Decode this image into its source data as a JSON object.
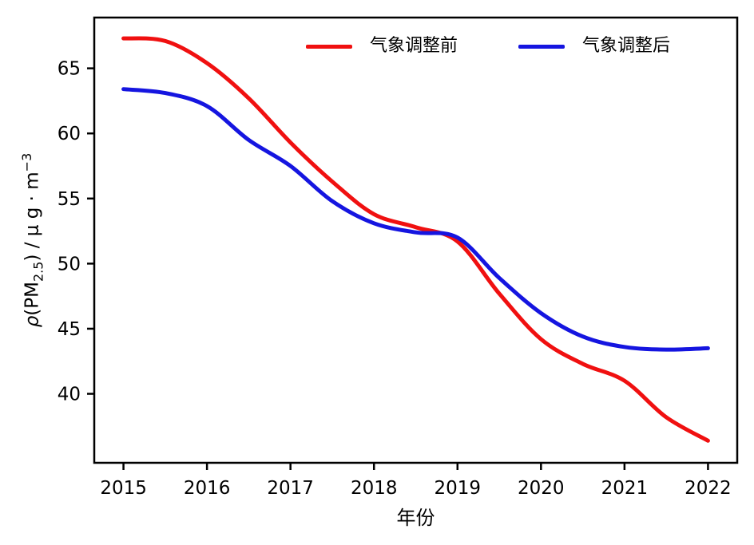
{
  "chart_data": {
    "type": "line",
    "title": "",
    "xlabel": "年份",
    "ylabel_plain": "ρ(PM2.5) / μ g · m−3",
    "ylabel_parts": {
      "rho": "ρ",
      "prefix": "(PM",
      "sub": "2.5",
      "mid": ") / μ g · m",
      "sup": "−3"
    },
    "x": [
      2015,
      2015.5,
      2016,
      2016.5,
      2017,
      2017.5,
      2018,
      2018.5,
      2019,
      2019.5,
      2020,
      2020.5,
      2021,
      2021.5,
      2022
    ],
    "series": [
      {
        "name": "气象调整前",
        "color": "#f01010",
        "values": [
          67.3,
          67.1,
          65.4,
          62.7,
          59.3,
          56.3,
          53.8,
          52.8,
          51.7,
          47.7,
          44.2,
          42.3,
          41.0,
          38.2,
          36.4
        ]
      },
      {
        "name": "气象调整后",
        "color": "#1515e0",
        "values": [
          63.4,
          63.1,
          62.1,
          59.5,
          57.5,
          54.8,
          53.1,
          52.4,
          52.0,
          48.9,
          46.2,
          44.4,
          43.6,
          43.4,
          43.5
        ]
      }
    ],
    "xticks": [
      2015,
      2016,
      2017,
      2018,
      2019,
      2020,
      2021,
      2022
    ],
    "xtick_labels": [
      "2015",
      "2016",
      "2017",
      "2018",
      "2019",
      "2020",
      "2021",
      "2022"
    ],
    "yticks": [
      40,
      45,
      50,
      55,
      60,
      65
    ],
    "ytick_labels": [
      "40",
      "45",
      "50",
      "55",
      "60",
      "65"
    ],
    "xlim": [
      2014.65,
      2022.35
    ],
    "ylim": [
      34.7,
      68.9
    ],
    "axis_color": "#000000",
    "background": "#ffffff",
    "grid": false,
    "legend_position": "upper center-right, horizontal, no frame"
  }
}
